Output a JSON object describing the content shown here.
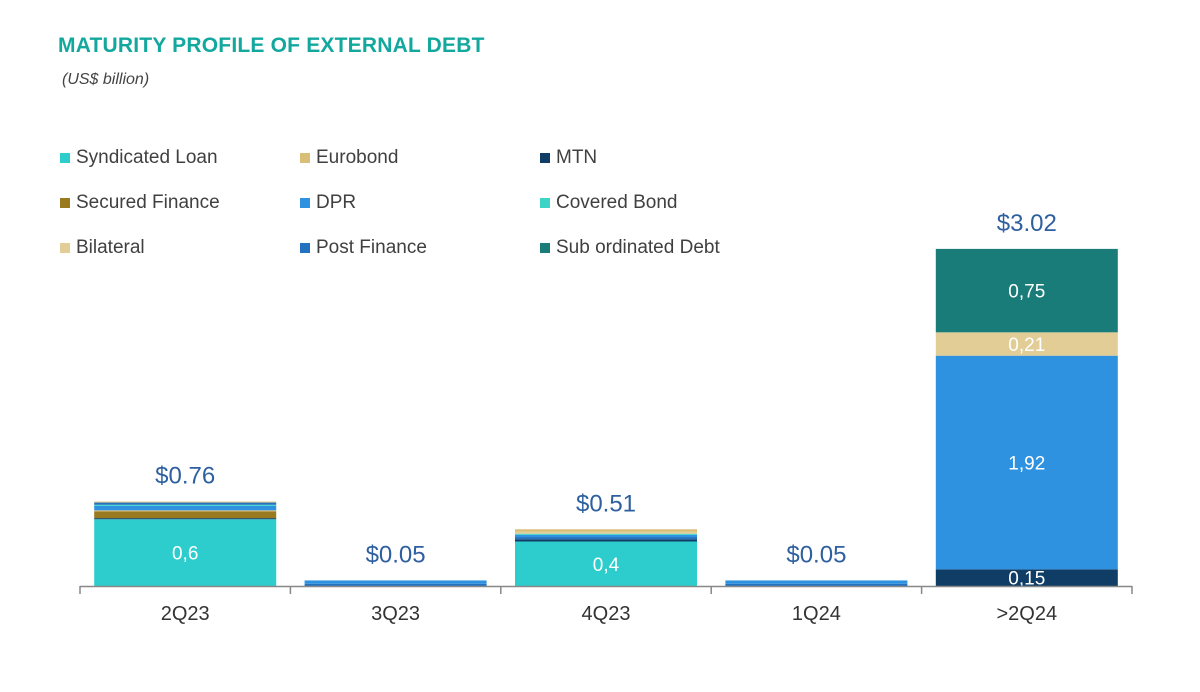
{
  "title": "MATURITY PROFILE OF EXTERNAL DEBT",
  "subtitle": "(US$ billion)",
  "colors": {
    "Syndicated Loan": "#2ecdcd",
    "Eurobond": "#d9be78",
    "MTN": "#0f3d66",
    "Secured Finance": "#9a7a1e",
    "DPR": "#2e92e0",
    "Covered Bond": "#3dd4c8",
    "Bilateral": "#e3cd96",
    "Post Finance": "#2272c0",
    "Sub ordinated Debt": "#1a7c78",
    "axis": "#888888",
    "total_label": "#2e5f9e",
    "tick_label": "#333333"
  },
  "chart_data": {
    "type": "bar",
    "stacked": true,
    "title": "MATURITY PROFILE OF EXTERNAL DEBT",
    "subtitle": "(US$ billion)",
    "legend_position": "top-left",
    "legend": [
      "Syndicated Loan",
      "Eurobond",
      "MTN",
      "Secured Finance",
      "DPR",
      "Covered Bond",
      "Bilateral",
      "Post Finance",
      "Sub ordinated Debt"
    ],
    "categories": [
      "2Q23",
      "3Q23",
      "4Q23",
      "1Q24",
      ">2Q24"
    ],
    "ylim": [
      0,
      3.02
    ],
    "totals": [
      "$0.76",
      "$0.05",
      "$0.51",
      "$0.05",
      "$3.02"
    ],
    "stacks": [
      [
        {
          "series": "Syndicated Loan",
          "value": 0.6,
          "label": "0,6"
        },
        {
          "series": "MTN",
          "value": 0.01
        },
        {
          "series": "Secured Finance",
          "value": 0.06
        },
        {
          "series": "Eurobond",
          "value": 0.01
        },
        {
          "series": "DPR",
          "value": 0.04
        },
        {
          "series": "Covered Bond",
          "value": 0.01
        },
        {
          "series": "Post Finance",
          "value": 0.02
        },
        {
          "series": "Bilateral",
          "value": 0.01
        }
      ],
      [
        {
          "series": "Post Finance",
          "value": 0.02
        },
        {
          "series": "DPR",
          "value": 0.03
        }
      ],
      [
        {
          "series": "Syndicated Loan",
          "value": 0.4,
          "label": "0,4"
        },
        {
          "series": "MTN",
          "value": 0.02
        },
        {
          "series": "Post Finance",
          "value": 0.02
        },
        {
          "series": "DPR",
          "value": 0.02
        },
        {
          "series": "Covered Bond",
          "value": 0.01
        },
        {
          "series": "Bilateral",
          "value": 0.02
        },
        {
          "series": "Eurobond",
          "value": 0.02
        }
      ],
      [
        {
          "series": "Post Finance",
          "value": 0.02
        },
        {
          "series": "DPR",
          "value": 0.03
        }
      ],
      [
        {
          "series": "MTN",
          "value": 0.15,
          "label": "0,15"
        },
        {
          "series": "DPR",
          "value": 1.92,
          "label": "1,92"
        },
        {
          "series": "Bilateral",
          "value": 0.21,
          "label": "0,21"
        },
        {
          "series": "Sub ordinated Debt",
          "value": 0.75,
          "label": "0,75"
        }
      ]
    ]
  }
}
